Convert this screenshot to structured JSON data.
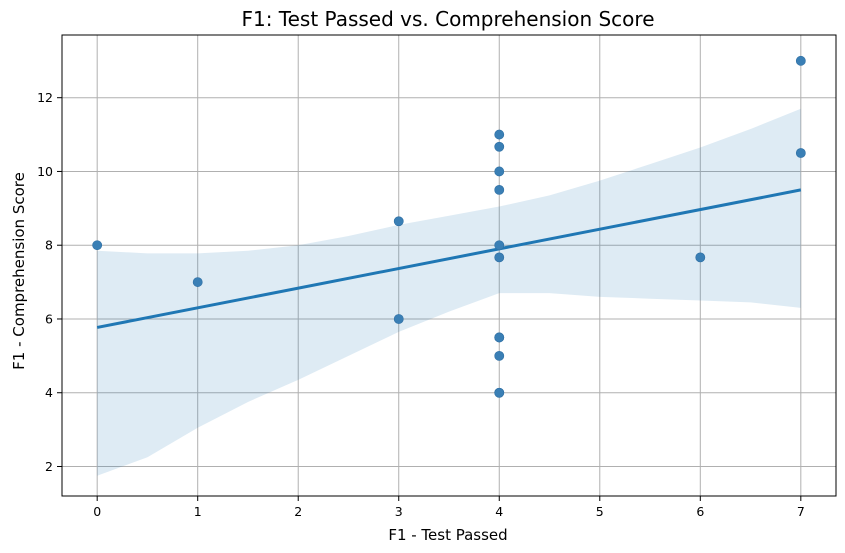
{
  "chart_data": {
    "type": "scatter",
    "title": "F1: Test Passed vs. Comprehension Score",
    "xlabel": "F1 - Test Passed",
    "ylabel": "F1 - Comprehension Score",
    "xlim": [
      -0.35,
      7.35
    ],
    "ylim": [
      1.2,
      13.7
    ],
    "xticks": [
      0,
      1,
      2,
      3,
      4,
      5,
      6,
      7
    ],
    "yticks": [
      2,
      4,
      6,
      8,
      10,
      12
    ],
    "grid": true,
    "points": [
      {
        "x": 0,
        "y": 8.0
      },
      {
        "x": 1,
        "y": 7.0
      },
      {
        "x": 3,
        "y": 8.65
      },
      {
        "x": 3,
        "y": 6.0
      },
      {
        "x": 4,
        "y": 11.0
      },
      {
        "x": 4,
        "y": 10.67
      },
      {
        "x": 4,
        "y": 10.0
      },
      {
        "x": 4,
        "y": 9.5
      },
      {
        "x": 4,
        "y": 8.0
      },
      {
        "x": 4,
        "y": 7.67
      },
      {
        "x": 4,
        "y": 5.5
      },
      {
        "x": 4,
        "y": 5.5
      },
      {
        "x": 4,
        "y": 5.0
      },
      {
        "x": 4,
        "y": 4.0
      },
      {
        "x": 4,
        "y": 4.0
      },
      {
        "x": 6,
        "y": 7.67
      },
      {
        "x": 7,
        "y": 13.0
      },
      {
        "x": 7,
        "y": 10.5
      }
    ],
    "regression": {
      "x": [
        0,
        7
      ],
      "y": [
        5.77,
        9.5
      ]
    },
    "confidence_band": {
      "x": [
        0,
        0.5,
        1,
        1.5,
        2,
        2.5,
        3,
        3.5,
        4,
        4.5,
        5,
        5.5,
        6,
        6.5,
        7
      ],
      "upper": [
        7.85,
        7.78,
        7.78,
        7.85,
        8.0,
        8.25,
        8.55,
        8.8,
        9.05,
        9.35,
        9.75,
        10.2,
        10.65,
        11.15,
        11.7
      ],
      "lower": [
        1.75,
        2.25,
        3.05,
        3.75,
        4.35,
        5.0,
        5.65,
        6.2,
        6.7,
        6.7,
        6.6,
        6.55,
        6.5,
        6.45,
        6.3
      ]
    },
    "colors": {
      "point": "#3a7fb5",
      "line": "#1f77b4",
      "band": "#1f77b4"
    }
  }
}
